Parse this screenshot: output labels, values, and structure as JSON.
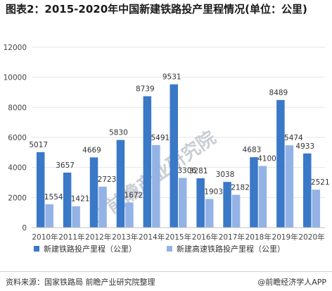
{
  "title": "图表2：2015-2020年中国新建铁路投产里程情况(单位：公里)",
  "footer": {
    "source": "资料来源：国家铁路局 前瞻产业研究院整理",
    "brand": "@前瞻经济学人APP"
  },
  "watermark": {
    "text": "前瞻产业研究院",
    "icon": "qianzhan-logo-icon"
  },
  "colors": {
    "series1": "#3a78c8",
    "series2": "#93b3e6",
    "grid": "#e6e6e6",
    "axis": "#bfbfbf"
  },
  "chart_data": {
    "type": "bar",
    "title": "图表2：2015-2020年中国新建铁路投产里程情况(单位：公里)",
    "categories": [
      "2010年",
      "2011年",
      "2012年",
      "2013年",
      "2014年",
      "2015年",
      "2016年",
      "2017年",
      "2018年",
      "2019年",
      "2020年"
    ],
    "series": [
      {
        "name": "新建铁路投产里程（公里）",
        "values": [
          5017,
          3657,
          4669,
          5830,
          8739,
          9531,
          3281,
          3038,
          4683,
          8489,
          4933
        ]
      },
      {
        "name": "新建高速铁路投产里程（公里）",
        "values": [
          1554,
          1421,
          2723,
          1672,
          5491,
          3306,
          1903,
          2182,
          4100,
          5474,
          2521
        ]
      }
    ],
    "ylim": [
      0,
      12000
    ],
    "yticks": [
      "0",
      "2000",
      "4000",
      "6000",
      "8000",
      "10000",
      "12000"
    ],
    "grid": true,
    "legend": "bottom"
  }
}
